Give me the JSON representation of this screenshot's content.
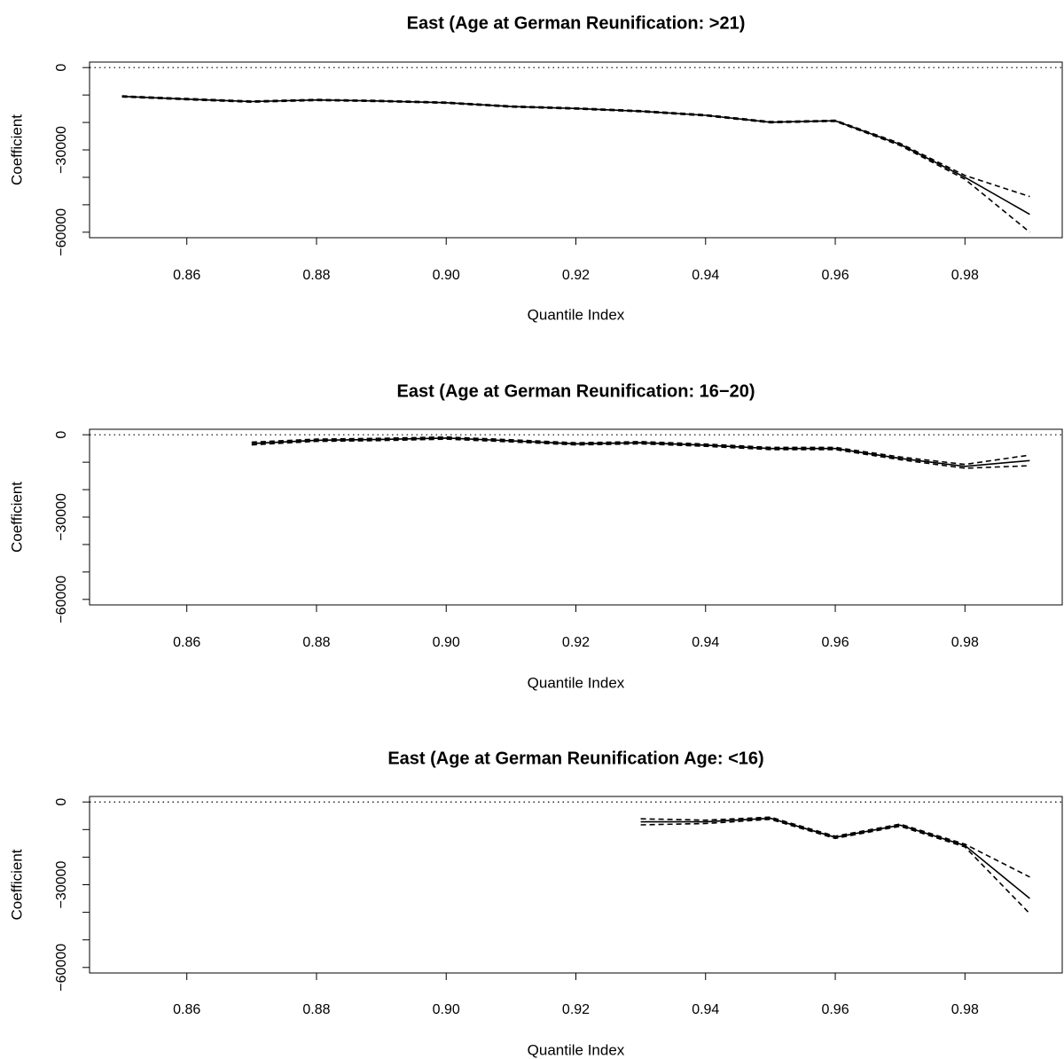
{
  "chart_data": [
    {
      "type": "line",
      "title": "East (Age at German Reunification: >21)",
      "xlabel": "Quantile Index",
      "ylabel": "Coefficient",
      "xlim": [
        0.845,
        0.995
      ],
      "ylim": [
        -62000,
        2000
      ],
      "xticks": [
        0.86,
        0.88,
        0.9,
        0.92,
        0.94,
        0.96,
        0.98
      ],
      "xtick_labels": [
        "0.86",
        "0.88",
        "0.90",
        "0.92",
        "0.94",
        "0.96",
        "0.98"
      ],
      "yticks": [
        0,
        -30000,
        -60000
      ],
      "ytick_labels": [
        "0",
        "−30000",
        "−60000"
      ],
      "reference_line": 0,
      "series": [
        {
          "role": "estimate",
          "x": [
            0.85,
            0.86,
            0.87,
            0.88,
            0.89,
            0.9,
            0.91,
            0.92,
            0.93,
            0.94,
            0.95,
            0.96,
            0.97,
            0.98,
            0.99
          ],
          "values": [
            -10500,
            -11500,
            -12400,
            -11800,
            -12200,
            -12800,
            -14200,
            -14900,
            -15900,
            -17400,
            -19900,
            -19400,
            -28000,
            -40000,
            -53500
          ]
        },
        {
          "role": "upper",
          "x": [
            0.85,
            0.86,
            0.87,
            0.88,
            0.89,
            0.9,
            0.91,
            0.92,
            0.93,
            0.94,
            0.95,
            0.96,
            0.97,
            0.98,
            0.99
          ],
          "values": [
            -10300,
            -11300,
            -12200,
            -11600,
            -12000,
            -12600,
            -14000,
            -14700,
            -15700,
            -17200,
            -19700,
            -19200,
            -27600,
            -39300,
            -47000
          ]
        },
        {
          "role": "lower",
          "x": [
            0.85,
            0.86,
            0.87,
            0.88,
            0.89,
            0.9,
            0.91,
            0.92,
            0.93,
            0.94,
            0.95,
            0.96,
            0.97,
            0.98,
            0.99
          ],
          "values": [
            -10700,
            -11700,
            -12600,
            -12000,
            -12400,
            -13000,
            -14400,
            -15100,
            -16100,
            -17600,
            -20100,
            -19600,
            -28400,
            -40700,
            -60000
          ]
        }
      ]
    },
    {
      "type": "line",
      "title": "East (Age at German Reunification: 16−20)",
      "xlabel": "Quantile Index",
      "ylabel": "Coefficient",
      "xlim": [
        0.845,
        0.995
      ],
      "ylim": [
        -62000,
        2000
      ],
      "xticks": [
        0.86,
        0.88,
        0.9,
        0.92,
        0.94,
        0.96,
        0.98
      ],
      "xtick_labels": [
        "0.86",
        "0.88",
        "0.90",
        "0.92",
        "0.94",
        "0.96",
        "0.98"
      ],
      "yticks": [
        0,
        -30000,
        -60000
      ],
      "ytick_labels": [
        "0",
        "−30000",
        "−60000"
      ],
      "reference_line": 0,
      "series": [
        {
          "role": "estimate",
          "x": [
            0.87,
            0.88,
            0.89,
            0.9,
            0.91,
            0.92,
            0.93,
            0.94,
            0.95,
            0.96,
            0.97,
            0.98,
            0.99
          ],
          "values": [
            -3200,
            -2000,
            -1700,
            -1200,
            -2200,
            -3300,
            -2900,
            -3800,
            -5000,
            -5000,
            -8600,
            -11500,
            -9400
          ]
        },
        {
          "role": "upper",
          "x": [
            0.87,
            0.88,
            0.89,
            0.9,
            0.91,
            0.92,
            0.93,
            0.94,
            0.95,
            0.96,
            0.97,
            0.98,
            0.99
          ],
          "values": [
            -2700,
            -1600,
            -1300,
            -800,
            -1800,
            -2900,
            -2500,
            -3400,
            -4600,
            -4600,
            -8100,
            -10800,
            -7400
          ]
        },
        {
          "role": "lower",
          "x": [
            0.87,
            0.88,
            0.89,
            0.9,
            0.91,
            0.92,
            0.93,
            0.94,
            0.95,
            0.96,
            0.97,
            0.98,
            0.99
          ],
          "values": [
            -3700,
            -2400,
            -2100,
            -1600,
            -2600,
            -3700,
            -3300,
            -4200,
            -5400,
            -5400,
            -9100,
            -12200,
            -11300
          ]
        }
      ]
    },
    {
      "type": "line",
      "title": "East (Age at German Reunification Age: <16)",
      "xlabel": "Quantile Index",
      "ylabel": "Coefficient",
      "xlim": [
        0.845,
        0.995
      ],
      "ylim": [
        -62000,
        2000
      ],
      "xticks": [
        0.86,
        0.88,
        0.9,
        0.92,
        0.94,
        0.96,
        0.98
      ],
      "xtick_labels": [
        "0.86",
        "0.88",
        "0.90",
        "0.92",
        "0.94",
        "0.96",
        "0.98"
      ],
      "yticks": [
        0,
        -30000,
        -60000
      ],
      "ytick_labels": [
        "0",
        "−30000",
        "−60000"
      ],
      "reference_line": 0,
      "series": [
        {
          "role": "estimate",
          "x": [
            0.93,
            0.94,
            0.95,
            0.96,
            0.97,
            0.98,
            0.99
          ],
          "values": [
            -7200,
            -7200,
            -5900,
            -12800,
            -8400,
            -15800,
            -35000
          ]
        },
        {
          "role": "upper",
          "x": [
            0.93,
            0.94,
            0.95,
            0.96,
            0.97,
            0.98,
            0.99
          ],
          "values": [
            -6100,
            -6600,
            -5500,
            -12400,
            -8000,
            -15300,
            -27200
          ]
        },
        {
          "role": "lower",
          "x": [
            0.93,
            0.94,
            0.95,
            0.96,
            0.97,
            0.98,
            0.99
          ],
          "values": [
            -8300,
            -7800,
            -6300,
            -13200,
            -8800,
            -16300,
            -40500
          ]
        }
      ]
    }
  ]
}
